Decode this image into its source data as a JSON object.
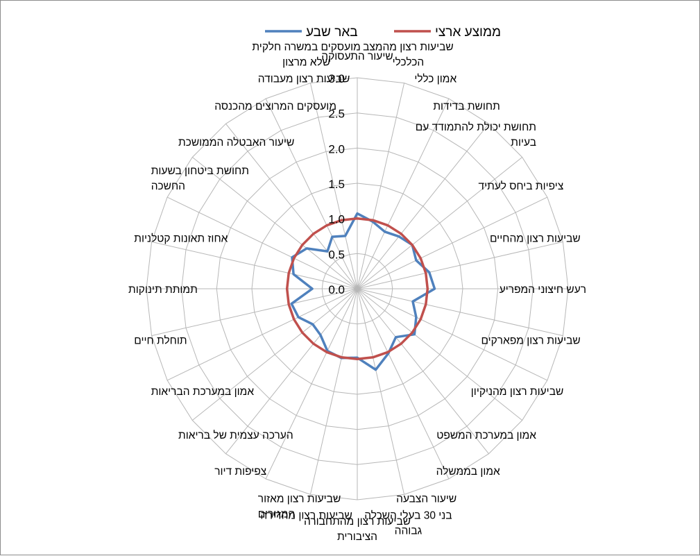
{
  "chart_data": {
    "type": "radar",
    "title": "",
    "legend_position": "top",
    "ylim": [
      0,
      3.0
    ],
    "ticks": [
      "0.0",
      "0.5",
      "1.0",
      "1.5",
      "2.0",
      "2.5",
      "3.0"
    ],
    "grid": true,
    "categories": [
      "שיעור התעסוקה",
      "שביעות רצון מהמצב הכלכלי",
      "אמון כללי",
      "תחושת בדידות",
      "תחושת יכולת להתמודד עם בעיות",
      "ציפיות ביחס לעתיד",
      "שביעות רצון מהחיים",
      "רעש חיצוני המפריע",
      "שביעות רצון מפארקים",
      "שביעות רצון מהניקיון",
      "אמון במערכת המשפט",
      "אמון בממשלה",
      "שיעור הצבעה",
      "בני 30 בעלי השכלה גבוהה",
      "שביעות רצון מהתחבורה הציבורית",
      "שביעות רצון מהדירה",
      "שביעות רצון מאזור המגורים",
      "צפיפות דיור",
      "הערכה עצמית של בריאות",
      "אמון במערכת הבריאות",
      "תוחלת חיים",
      "תמותת תינוקות",
      "אחוז תאונות קטלניות",
      "תחושת ביטחון בשעות החשכה",
      "שיעור האבטלה הממושכת",
      "מועסקים המרוצים מהכנסה",
      "שביעות רצון מעבודה",
      "מועסקים במשרה חלקית שלא מרצון"
    ],
    "series": [
      {
        "name": "באר שבע",
        "color": "#4f81bd",
        "values": [
          1.07,
          0.98,
          0.9,
          0.95,
          1.0,
          0.93,
          1.05,
          1.1,
          0.81,
          0.93,
          1.04,
          0.88,
          1.02,
          1.18,
          0.98,
          1.01,
          0.98,
          0.84,
          0.81,
          0.93,
          0.96,
          0.64,
          0.93,
          1.03,
          0.92,
          0.68,
          0.82,
          0.77
        ]
      },
      {
        "name": "ממוצע ארצי",
        "color": "#c0504d",
        "values": [
          1,
          1,
          1,
          1,
          1,
          1,
          1,
          1,
          1,
          1,
          1,
          1,
          1,
          1,
          1,
          1,
          1,
          1,
          1,
          1,
          1,
          1,
          1,
          1,
          1,
          1,
          1,
          1
        ]
      }
    ]
  }
}
